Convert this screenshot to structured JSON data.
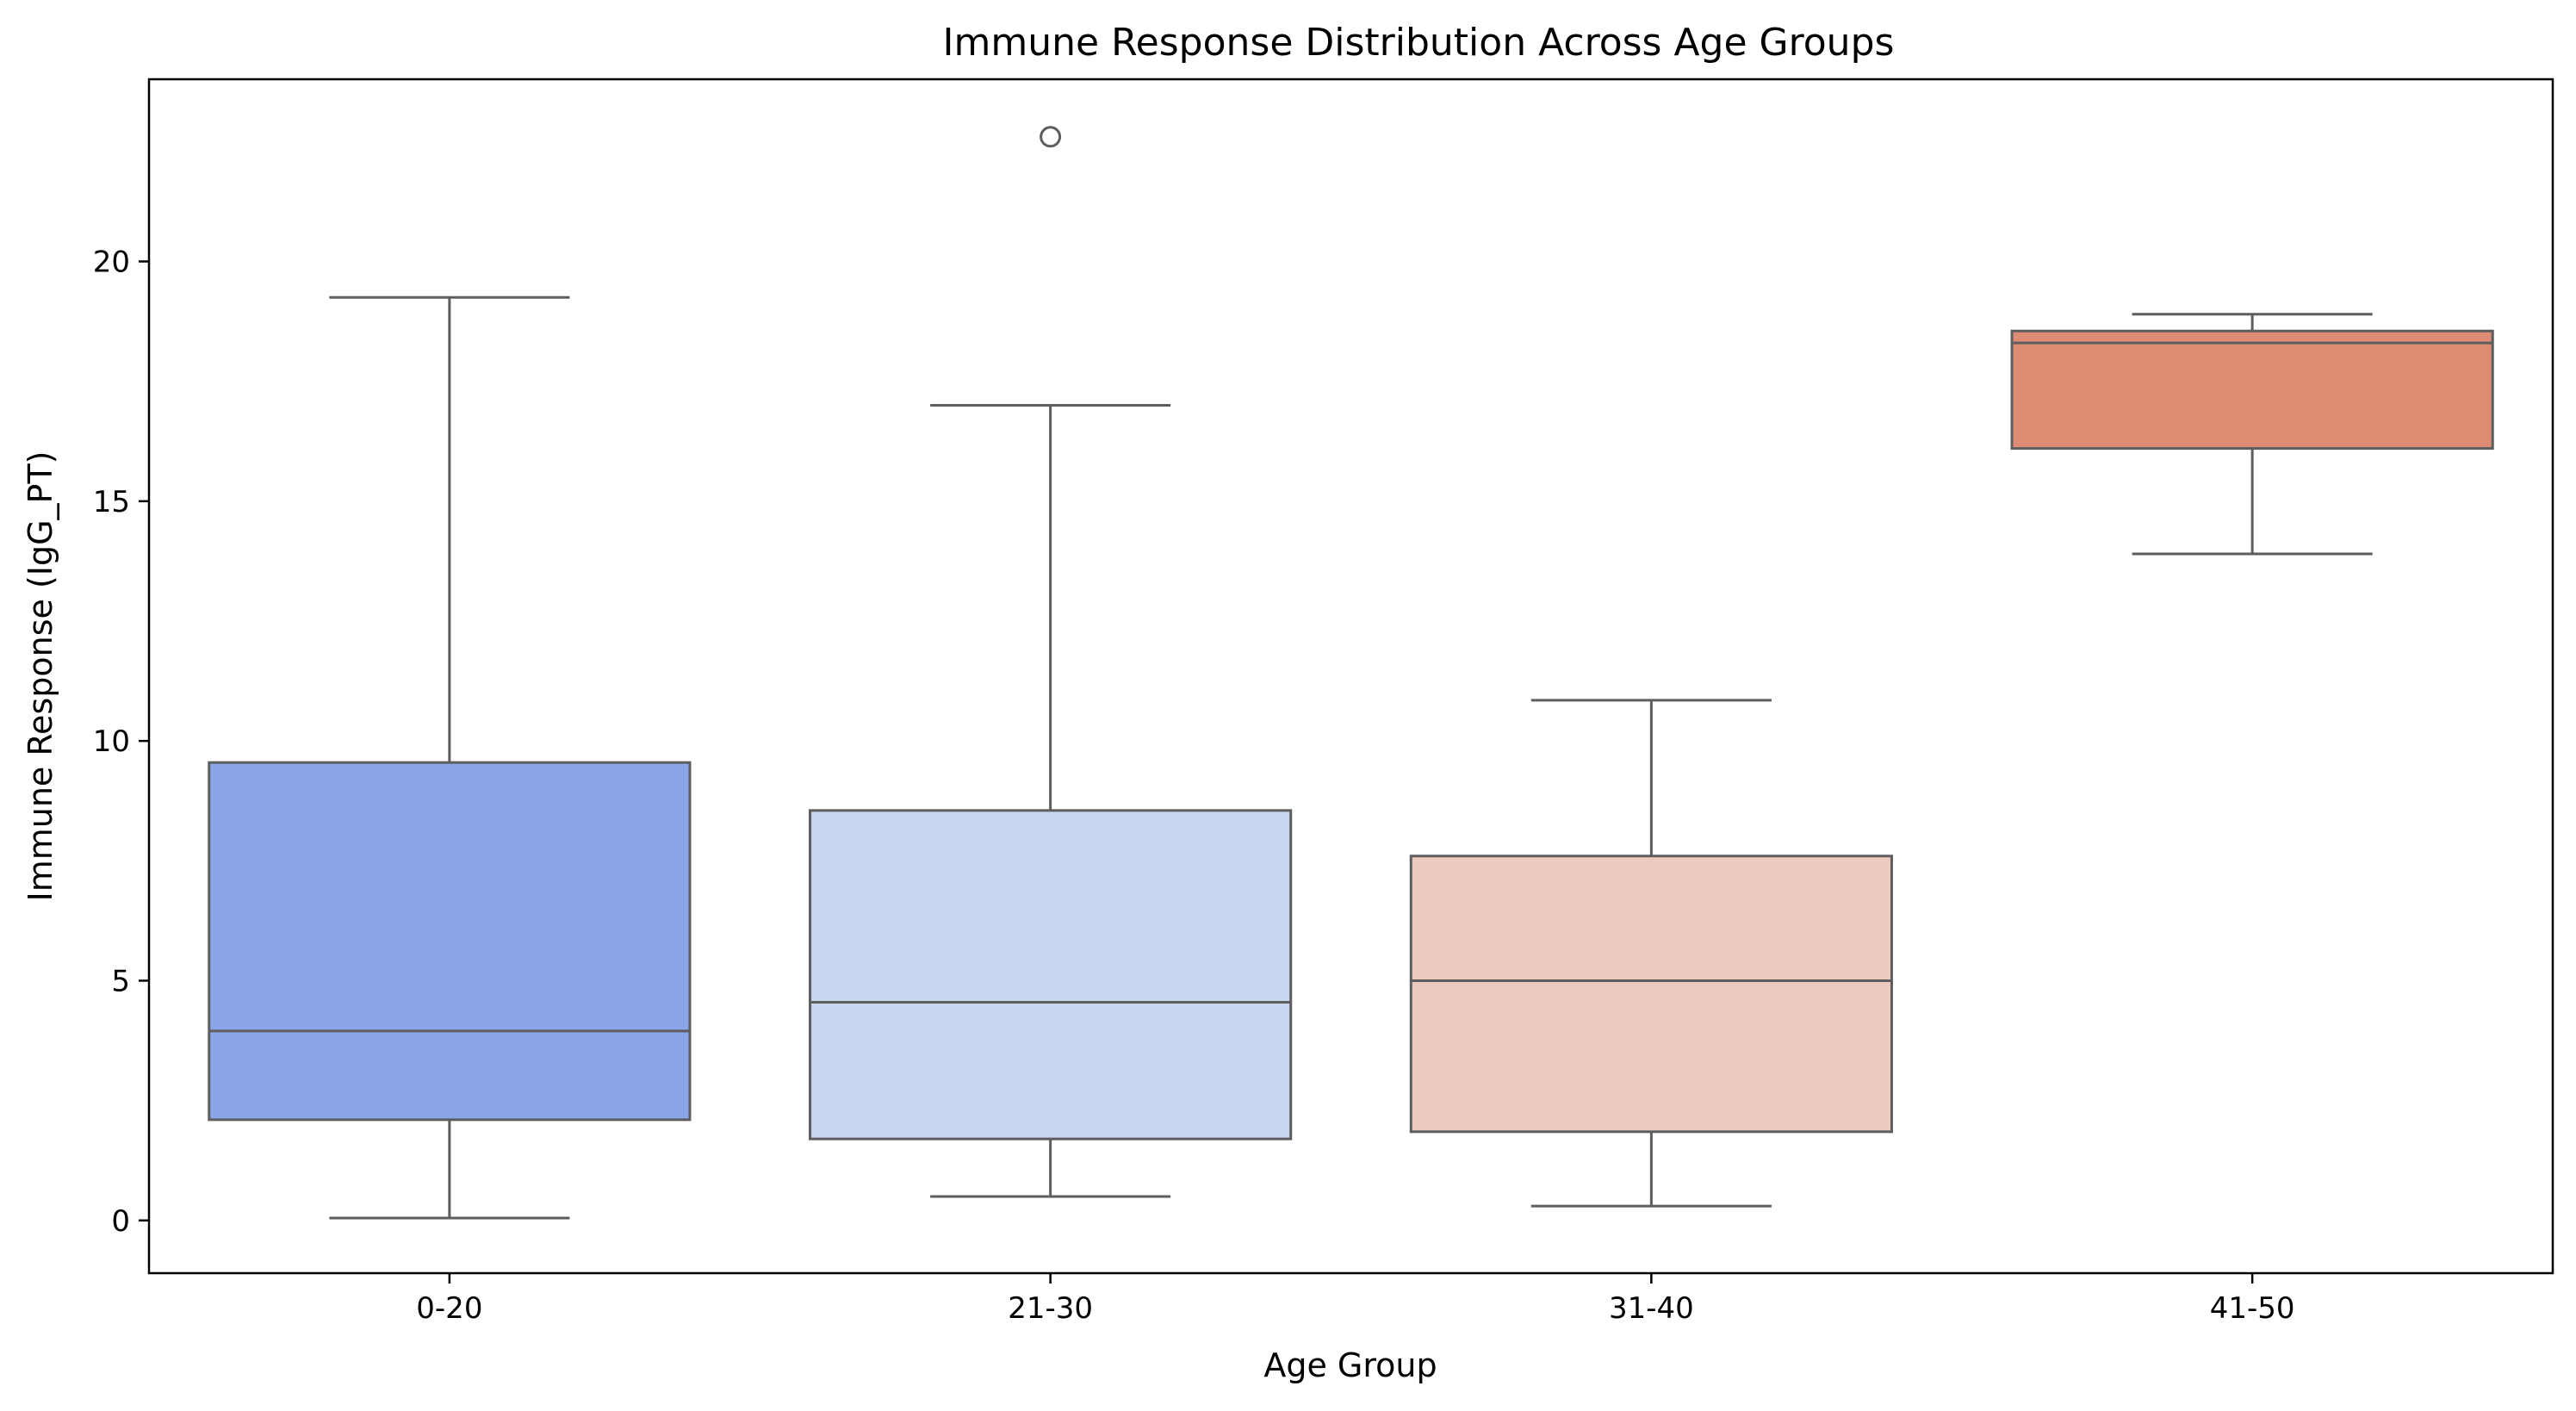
{
  "chart_data": {
    "type": "box",
    "title": "Immune Response Distribution Across Age Groups",
    "xlabel": "Age Group",
    "ylabel": "Immune Response (IgG_PT)",
    "ylim": [
      -1.1,
      23.8
    ],
    "yticks": [
      0,
      5,
      10,
      15,
      20
    ],
    "grid": false,
    "categories": [
      "0-20",
      "21-30",
      "31-40",
      "41-50"
    ],
    "boxes": [
      {
        "category": "0-20",
        "whisker_low": 0.05,
        "q1": 2.1,
        "median": 3.95,
        "q3": 9.55,
        "whisker_high": 19.25,
        "outliers": [],
        "color": "#8aa5e8"
      },
      {
        "category": "21-30",
        "whisker_low": 0.5,
        "q1": 1.7,
        "median": 4.55,
        "q3": 8.55,
        "whisker_high": 17.0,
        "outliers": [
          22.6
        ],
        "color": "#c7d5ef"
      },
      {
        "category": "31-40",
        "whisker_low": 0.3,
        "q1": 1.85,
        "median": 5.0,
        "q3": 7.6,
        "whisker_high": 10.85,
        "outliers": [],
        "color": "#eacbbd"
      },
      {
        "category": "41-50",
        "whisker_low": 13.9,
        "q1": 16.1,
        "median": 18.3,
        "q3": 18.55,
        "whisker_high": 18.9,
        "outliers": [],
        "color": "#df8c75"
      }
    ],
    "line_color": "#5e5e5e"
  }
}
